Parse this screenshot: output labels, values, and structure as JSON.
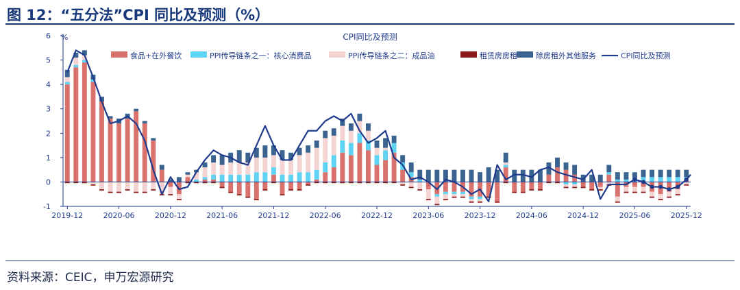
{
  "figure": {
    "title": "图 12：“五分法”CPI 同比及预测（%）",
    "source": "资料来源：CEIC，申万宏源研究"
  },
  "colors": {
    "food": "#d9726c",
    "core": "#5fd3f3",
    "fuel": "#f4d4d2",
    "rent": "#8b1a1a",
    "services": "#3a6390",
    "cpi_line": "#1f3b8c",
    "accent": "#17387a"
  },
  "chart_data": {
    "type": "bar",
    "title": "CPI同比及预测",
    "ylabel": "%",
    "ylim": [
      -1,
      6
    ],
    "yticks": [
      -1,
      0,
      1,
      2,
      3,
      4,
      5,
      6
    ],
    "xtick_labels": [
      "2019-12",
      "2020-06",
      "2020-12",
      "2021-06",
      "2021-12",
      "2022-06",
      "2022-12",
      "2023-06",
      "2023-12",
      "2024-06",
      "2024-12",
      "2025-06",
      "2025-12"
    ],
    "legend_position": "top",
    "forecast_start": "2025-07",
    "x": [
      "2019-12",
      "2020-01",
      "2020-02",
      "2020-03",
      "2020-04",
      "2020-05",
      "2020-06",
      "2020-07",
      "2020-08",
      "2020-09",
      "2020-10",
      "2020-11",
      "2020-12",
      "2021-01",
      "2021-02",
      "2021-03",
      "2021-04",
      "2021-05",
      "2021-06",
      "2021-07",
      "2021-08",
      "2021-09",
      "2021-10",
      "2021-11",
      "2021-12",
      "2022-01",
      "2022-02",
      "2022-03",
      "2022-04",
      "2022-05",
      "2022-06",
      "2022-07",
      "2022-08",
      "2022-09",
      "2022-10",
      "2022-11",
      "2022-12",
      "2023-01",
      "2023-02",
      "2023-03",
      "2023-04",
      "2023-05",
      "2023-06",
      "2023-07",
      "2023-08",
      "2023-09",
      "2023-10",
      "2023-11",
      "2023-12",
      "2024-01",
      "2024-02",
      "2024-03",
      "2024-04",
      "2024-05",
      "2024-06",
      "2024-07",
      "2024-08",
      "2024-09",
      "2024-10",
      "2024-11",
      "2024-12",
      "2025-01",
      "2025-02",
      "2025-03",
      "2025-04",
      "2025-05",
      "2025-06",
      "2025-07",
      "2025-08",
      "2025-09",
      "2025-10",
      "2025-11",
      "2025-12"
    ],
    "series": [
      {
        "name": "食品+在外餐饮",
        "key": "food",
        "kind": "bar",
        "values": [
          4.0,
          4.7,
          4.9,
          4.1,
          3.3,
          2.6,
          2.4,
          2.6,
          2.9,
          2.4,
          1.7,
          0.5,
          -0.2,
          -0.5,
          0.2,
          0.0,
          0.1,
          0.1,
          -0.2,
          -0.4,
          -0.5,
          -0.6,
          -0.7,
          -0.3,
          0.3,
          -0.5,
          -0.3,
          -0.3,
          -0.1,
          0.1,
          0.4,
          0.6,
          1.2,
          1.1,
          1.6,
          1.3,
          0.7,
          0.9,
          1.2,
          0.5,
          0.2,
          0.0,
          -0.3,
          -0.5,
          -0.4,
          -0.4,
          -0.4,
          -0.6,
          -0.6,
          -0.6,
          -0.8,
          0.6,
          -0.4,
          -0.4,
          -0.3,
          -0.3,
          0.3,
          0.6,
          0.5,
          0.3,
          -0.2,
          -0.3,
          -0.2,
          0.3,
          -0.6,
          -0.2,
          -0.2,
          -0.2,
          -0.4,
          -0.5,
          -0.4,
          -0.3,
          0.1
        ]
      },
      {
        "name": "PPI传导链条之一：核心消费品",
        "key": "core",
        "kind": "bar",
        "values": [
          0.1,
          0.1,
          0.1,
          0.1,
          0.0,
          0.0,
          0.0,
          0.0,
          0.0,
          0.0,
          0.0,
          0.0,
          0.0,
          0.0,
          0.0,
          0.1,
          0.1,
          0.2,
          0.3,
          0.3,
          0.3,
          0.3,
          0.4,
          0.4,
          0.3,
          0.3,
          0.3,
          0.4,
          0.4,
          0.4,
          0.4,
          0.5,
          0.5,
          0.5,
          0.4,
          0.4,
          0.4,
          0.4,
          0.4,
          0.3,
          0.2,
          0.1,
          0.0,
          -0.1,
          -0.1,
          -0.1,
          -0.1,
          -0.1,
          -0.1,
          0.0,
          0.0,
          0.1,
          0.0,
          0.0,
          0.0,
          0.0,
          0.0,
          0.0,
          -0.1,
          -0.1,
          0.0,
          0.0,
          0.0,
          0.1,
          0.1,
          0.1,
          0.1,
          0.2,
          0.2,
          0.2,
          0.2,
          0.2,
          0.1
        ]
      },
      {
        "name": "PPI传导链条之二：成品油",
        "key": "fuel",
        "kind": "bar",
        "values": [
          0.2,
          0.3,
          0.2,
          -0.1,
          -0.3,
          -0.4,
          -0.4,
          -0.3,
          -0.4,
          -0.4,
          -0.3,
          -0.5,
          -0.3,
          -0.2,
          0.1,
          0.3,
          0.4,
          0.5,
          0.4,
          0.5,
          0.5,
          0.5,
          0.6,
          0.6,
          0.5,
          0.6,
          0.6,
          0.7,
          0.8,
          0.9,
          1.0,
          0.8,
          0.6,
          0.5,
          0.5,
          0.4,
          0.3,
          0.1,
          0.0,
          -0.1,
          -0.2,
          -0.3,
          -0.4,
          -0.3,
          -0.2,
          -0.1,
          -0.1,
          -0.1,
          -0.1,
          0.0,
          0.0,
          0.1,
          0.0,
          0.0,
          0.0,
          0.0,
          0.0,
          0.0,
          -0.1,
          -0.1,
          0.0,
          0.0,
          -0.1,
          -0.1,
          -0.2,
          -0.2,
          -0.2,
          -0.2,
          -0.2,
          -0.2,
          -0.2,
          -0.2,
          -0.1
        ]
      },
      {
        "name": "租赁房房租",
        "key": "rent",
        "kind": "bar",
        "values": [
          -0.05,
          -0.05,
          -0.05,
          -0.05,
          -0.05,
          -0.05,
          -0.05,
          -0.05,
          -0.05,
          -0.05,
          -0.05,
          -0.05,
          -0.05,
          -0.05,
          -0.05,
          -0.05,
          -0.05,
          -0.05,
          -0.05,
          -0.05,
          -0.05,
          -0.05,
          -0.05,
          -0.05,
          -0.05,
          -0.05,
          -0.05,
          -0.05,
          -0.05,
          -0.05,
          -0.05,
          -0.05,
          -0.05,
          -0.05,
          -0.05,
          -0.05,
          -0.05,
          -0.05,
          -0.05,
          -0.05,
          -0.05,
          -0.05,
          -0.05,
          -0.05,
          -0.05,
          -0.05,
          -0.05,
          -0.05,
          -0.05,
          -0.05,
          -0.05,
          -0.05,
          -0.05,
          -0.05,
          -0.05,
          -0.05,
          -0.05,
          -0.05,
          -0.05,
          -0.05,
          -0.05,
          -0.05,
          -0.05,
          -0.05,
          -0.05,
          -0.05,
          -0.05,
          -0.05,
          -0.05,
          -0.05,
          -0.05,
          -0.05,
          -0.05
        ]
      },
      {
        "name": "除房租外其他服务",
        "key": "services",
        "kind": "bar",
        "values": [
          0.3,
          0.2,
          0.2,
          0.2,
          0.2,
          0.1,
          0.2,
          0.2,
          0.1,
          0.1,
          0.1,
          0.2,
          0.1,
          0.2,
          0.1,
          0.1,
          0.2,
          0.3,
          0.4,
          0.4,
          0.5,
          0.4,
          0.4,
          0.5,
          0.4,
          0.4,
          0.3,
          0.3,
          0.3,
          0.3,
          0.3,
          0.3,
          0.3,
          0.3,
          0.3,
          0.3,
          0.3,
          0.4,
          0.3,
          0.3,
          0.4,
          0.4,
          0.5,
          0.5,
          0.5,
          0.5,
          0.5,
          0.5,
          0.4,
          0.6,
          0.5,
          0.4,
          0.5,
          0.5,
          0.5,
          0.5,
          0.5,
          0.4,
          0.3,
          0.4,
          0.3,
          0.3,
          0.3,
          0.3,
          0.3,
          0.3,
          0.3,
          0.3,
          0.3,
          0.3,
          0.3,
          0.3,
          0.3
        ]
      },
      {
        "name": "CPI同比及预测",
        "key": "cpi",
        "kind": "line",
        "values": [
          4.5,
          5.4,
          5.2,
          4.3,
          3.3,
          2.4,
          2.5,
          2.7,
          2.4,
          1.7,
          0.5,
          -0.5,
          0.2,
          -0.3,
          -0.2,
          0.4,
          0.9,
          1.3,
          1.1,
          1.0,
          0.8,
          0.7,
          1.5,
          2.3,
          1.5,
          0.9,
          0.9,
          1.5,
          2.1,
          2.1,
          2.5,
          2.7,
          2.5,
          2.8,
          2.1,
          1.6,
          1.8,
          2.1,
          1.0,
          0.7,
          0.1,
          0.2,
          0.0,
          -0.3,
          0.1,
          0.0,
          -0.2,
          -0.5,
          -0.3,
          -0.8,
          0.7,
          0.1,
          0.3,
          0.3,
          0.2,
          0.5,
          0.6,
          0.4,
          0.3,
          0.2,
          0.1,
          0.5,
          -0.7,
          -0.1,
          -0.1,
          -0.1,
          0.1,
          0.0,
          -0.2,
          -0.2,
          -0.3,
          -0.2,
          0.1
        ]
      }
    ],
    "cpi_after_last": 0.3
  }
}
